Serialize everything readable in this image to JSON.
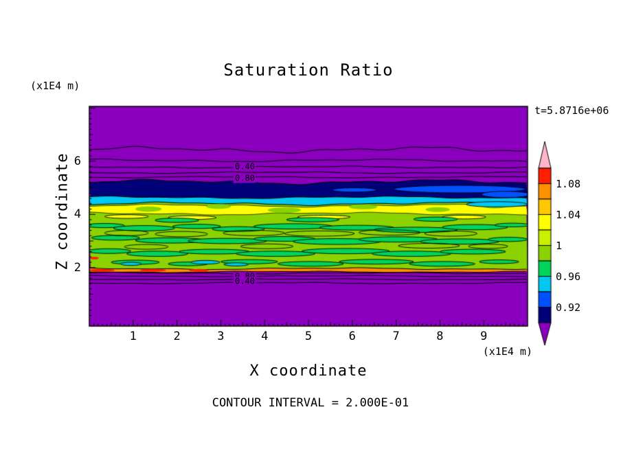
{
  "page": {
    "background": "#ffffff"
  },
  "chart_data": {
    "type": "heatmap",
    "title": "Saturation Ratio",
    "xlabel": "X coordinate",
    "ylabel": "Z coordinate",
    "x_unit_label": "(x1E4 m)",
    "z_unit_label": "(x1E4 m)",
    "time_annotation": "t=5.8716e+06",
    "contour_interval_note": "CONTOUR INTERVAL = 2.000E-01",
    "contour_interval": 0.2,
    "xlim": [
      0,
      10
    ],
    "zlim": [
      -0.2,
      8.06
    ],
    "x_major_ticks": [
      1,
      2,
      3,
      4,
      5,
      6,
      7,
      8,
      9
    ],
    "z_major_ticks": [
      2,
      4,
      6
    ],
    "grid": false,
    "colorbar": {
      "position": "right",
      "value_labels": [
        "1.08",
        "1.04",
        "1",
        "0.96",
        "0.92"
      ],
      "segment_values_top_to_bottom": [
        1.1,
        1.08,
        1.06,
        1.04,
        1.02,
        1.0,
        0.98,
        0.96,
        0.94,
        0.92
      ],
      "segment_colors_top_to_bottom": [
        "#FF1E00",
        "#FF9000",
        "#FFC800",
        "#FFFF00",
        "#C8F000",
        "#8CD200",
        "#00D45A",
        "#00C8F0",
        "#0050FF",
        "#000078"
      ],
      "over_arrow_color": "#FFB4C8",
      "under_arrow_color": "#8A00BE"
    },
    "field": {
      "background_color": "#8A00BE",
      "green_color": "#00D45A",
      "blue_color": "#0050FF",
      "cyan_color": "#00C8F0",
      "red_color": "#FF1E00",
      "boundaries": [
        {
          "z": 5.22,
          "amp": 2.2,
          "phase": 1.0
        },
        {
          "z": 4.64,
          "amp": 1.1,
          "phase": 2.2
        },
        {
          "z": 4.4,
          "amp": 1.5,
          "phase": 0.6
        },
        {
          "z": 1.96,
          "amp": 0.9,
          "phase": 3.2
        },
        {
          "z": 1.84,
          "amp": 0.7,
          "phase": 4.4
        }
      ],
      "region_colors": [
        "#000078",
        "#00C8F0",
        "#8CD200",
        "#FF9000"
      ],
      "yellow_strip": {
        "z_top": 4.33,
        "z_bottom": 4.03,
        "amp": 1.3,
        "color": "#FFFF00"
      },
      "yellow_gap_patches": [
        [
          1.35,
          4.2,
          0.3,
          0.1
        ],
        [
          2.95,
          4.3,
          0.28,
          0.09
        ],
        [
          4.45,
          4.16,
          0.38,
          0.1
        ],
        [
          6.25,
          4.28,
          0.32,
          0.09
        ],
        [
          7.95,
          4.18,
          0.28,
          0.09
        ],
        [
          9.25,
          4.3,
          0.26,
          0.08
        ]
      ],
      "yellow_extra_patches": [
        [
          0.85,
          3.92,
          0.5,
          0.07
        ],
        [
          2.35,
          3.88,
          0.55,
          0.07
        ],
        [
          5.35,
          3.9,
          0.6,
          0.07
        ],
        [
          8.55,
          3.9,
          0.5,
          0.07
        ]
      ],
      "green_patches": [
        [
          0.35,
          3.58,
          0.45,
          0.08
        ],
        [
          1.25,
          3.48,
          0.7,
          0.1
        ],
        [
          2.45,
          3.55,
          0.55,
          0.08
        ],
        [
          3.4,
          3.45,
          0.6,
          0.09
        ],
        [
          4.65,
          3.55,
          0.9,
          0.1
        ],
        [
          6.1,
          3.5,
          0.85,
          0.09
        ],
        [
          7.45,
          3.42,
          0.95,
          0.1
        ],
        [
          8.8,
          3.52,
          0.75,
          0.1
        ],
        [
          9.65,
          3.6,
          0.4,
          0.07
        ],
        [
          0.6,
          3.12,
          0.55,
          0.09
        ],
        [
          1.85,
          3.02,
          0.8,
          0.1
        ],
        [
          3.15,
          3.0,
          0.9,
          0.1
        ],
        [
          4.45,
          3.08,
          0.7,
          0.09
        ],
        [
          5.65,
          2.98,
          1.0,
          0.11
        ],
        [
          7.05,
          3.06,
          0.9,
          0.1
        ],
        [
          8.45,
          2.98,
          0.9,
          0.1
        ],
        [
          9.55,
          3.06,
          0.45,
          0.08
        ],
        [
          0.45,
          2.62,
          0.5,
          0.09
        ],
        [
          1.55,
          2.52,
          0.7,
          0.1
        ],
        [
          2.85,
          2.6,
          0.8,
          0.09
        ],
        [
          4.25,
          2.52,
          0.9,
          0.1
        ],
        [
          5.85,
          2.62,
          1.0,
          0.1
        ],
        [
          7.35,
          2.52,
          0.9,
          0.1
        ],
        [
          8.75,
          2.6,
          0.75,
          0.09
        ],
        [
          1.05,
          2.2,
          0.55,
          0.08
        ],
        [
          2.25,
          2.14,
          0.45,
          0.07
        ],
        [
          3.65,
          2.22,
          0.65,
          0.08
        ],
        [
          5.05,
          2.14,
          0.75,
          0.09
        ],
        [
          6.55,
          2.22,
          0.85,
          0.09
        ],
        [
          8.05,
          2.14,
          0.75,
          0.09
        ],
        [
          9.35,
          2.22,
          0.45,
          0.07
        ],
        [
          2.0,
          3.78,
          0.5,
          0.08
        ],
        [
          5.1,
          3.8,
          0.6,
          0.08
        ],
        [
          7.9,
          3.82,
          0.5,
          0.08
        ]
      ],
      "green_outline_patches": [
        [
          0.85,
          3.3,
          0.5,
          0.1
        ],
        [
          2.1,
          3.26,
          0.6,
          0.1
        ],
        [
          3.75,
          3.3,
          0.7,
          0.1
        ],
        [
          5.25,
          3.28,
          0.8,
          0.1
        ],
        [
          6.85,
          3.32,
          0.7,
          0.1
        ],
        [
          8.25,
          3.28,
          0.6,
          0.1
        ],
        [
          4.05,
          2.8,
          0.6,
          0.09
        ],
        [
          7.75,
          2.82,
          0.7,
          0.09
        ],
        [
          1.3,
          2.78,
          0.5,
          0.09
        ],
        [
          9.1,
          2.8,
          0.45,
          0.08
        ]
      ],
      "blue_patches": [
        [
          8.45,
          4.95,
          1.5,
          0.14
        ],
        [
          6.05,
          4.92,
          0.5,
          0.08
        ],
        [
          9.5,
          4.75,
          0.55,
          0.12
        ]
      ],
      "cyan_patches": [
        [
          9.3,
          4.38,
          0.7,
          0.1
        ],
        [
          2.65,
          2.2,
          0.33,
          0.07
        ],
        [
          3.35,
          2.12,
          0.28,
          0.06
        ],
        [
          0.95,
          2.14,
          0.24,
          0.06
        ]
      ],
      "red_patches": [
        [
          0.28,
          1.9,
          0.3,
          0.05
        ],
        [
          1.45,
          1.9,
          0.3,
          0.05
        ],
        [
          2.5,
          1.9,
          0.22,
          0.05
        ],
        [
          0.12,
          2.36,
          0.1,
          0.05
        ]
      ],
      "contour_lines_top": [
        {
          "z": 6.43,
          "amp": 2.8
        },
        {
          "z": 6.03,
          "amp": 1.2
        },
        {
          "z": 5.78,
          "amp": 0.9
        },
        {
          "z": 5.57,
          "amp": 0.8
        },
        {
          "z": 5.4,
          "amp": 0.7
        }
      ],
      "contour_lines_bottom": [
        {
          "z": 1.79,
          "amp": 0.7
        },
        {
          "z": 1.68,
          "amp": 0.6
        },
        {
          "z": 1.56,
          "amp": 0.6
        },
        {
          "z": 1.42,
          "amp": 0.7
        }
      ],
      "contour_labels": [
        {
          "text": "0.40",
          "x": 3.55,
          "z": 5.78
        },
        {
          "text": "0.80",
          "x": 3.55,
          "z": 5.34
        },
        {
          "text": "0.80",
          "x": 3.55,
          "z": 1.66
        },
        {
          "text": "0.40",
          "x": 3.55,
          "z": 1.48
        }
      ]
    }
  }
}
